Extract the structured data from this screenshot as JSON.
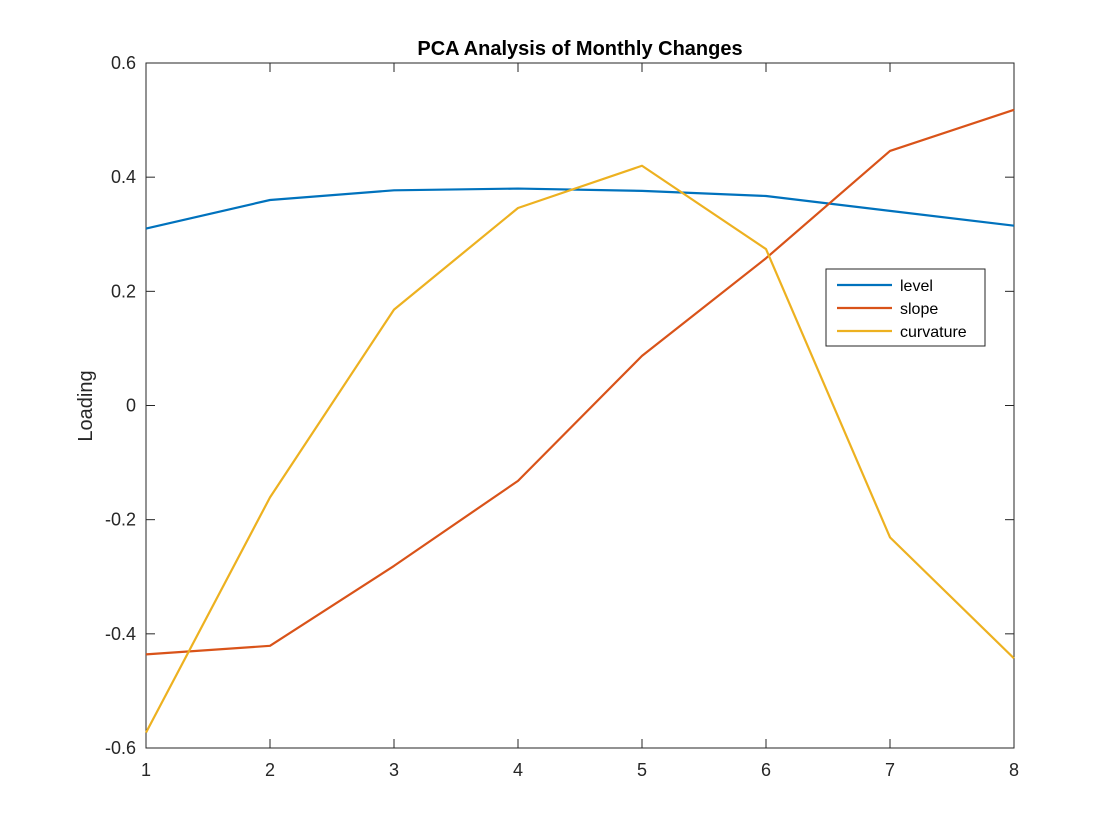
{
  "chart_data": {
    "type": "line",
    "title": "PCA Analysis of Monthly Changes",
    "xlabel": "",
    "ylabel": "Loading",
    "x": [
      1,
      2,
      3,
      4,
      5,
      6,
      7,
      8
    ],
    "xlim": [
      1,
      8
    ],
    "ylim": [
      -0.6,
      0.6
    ],
    "xticks": [
      1,
      2,
      3,
      4,
      5,
      6,
      7,
      8
    ],
    "yticks": [
      -0.6,
      -0.4,
      -0.2,
      0,
      0.2,
      0.4,
      0.6
    ],
    "ytick_labels": [
      "-0.6",
      "-0.4",
      "-0.2",
      "0",
      "0.2",
      "0.4",
      "0.6"
    ],
    "grid": false,
    "legend_position": "right",
    "series": [
      {
        "name": "level",
        "color": "#0072BD",
        "values": [
          0.31,
          0.36,
          0.377,
          0.38,
          0.376,
          0.367,
          0.341,
          0.315
        ]
      },
      {
        "name": "slope",
        "color": "#D95319",
        "values": [
          -0.436,
          -0.421,
          -0.281,
          -0.132,
          0.087,
          0.258,
          0.446,
          0.518
        ]
      },
      {
        "name": "curvature",
        "color": "#EDB120",
        "values": [
          -0.573,
          -0.161,
          0.168,
          0.346,
          0.42,
          0.274,
          -0.231,
          -0.443
        ]
      }
    ]
  }
}
